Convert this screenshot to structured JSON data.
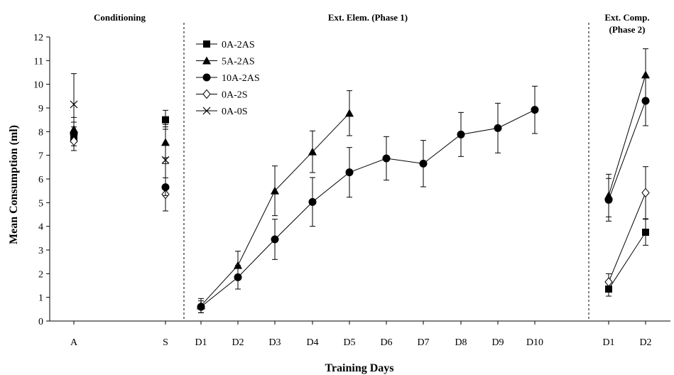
{
  "chart_data": {
    "type": "line",
    "xlabel": "Training Days",
    "ylabel": "Mean Consumption (ml)",
    "ylim": [
      0,
      12
    ],
    "yticks": [
      "0",
      "1",
      "2",
      "3",
      "4",
      "5",
      "6",
      "7",
      "8",
      "9",
      "10",
      "11",
      "12"
    ],
    "grid": false,
    "legend_position": "top-left",
    "sections": [
      {
        "title_lines": [
          "Conditioning"
        ],
        "categories": [
          "A",
          "S"
        ]
      },
      {
        "title_lines": [
          "Ext. Elem. (Phase 1)"
        ],
        "categories": [
          "D1",
          "D2",
          "D3",
          "D4",
          "D5",
          "D6",
          "D7",
          "D8",
          "D9",
          "D10"
        ]
      },
      {
        "title_lines": [
          "Ext. Comp.",
          "(Phase 2)"
        ],
        "categories": [
          "D1",
          "D2"
        ]
      }
    ],
    "series": [
      {
        "name": "0A-2AS",
        "marker": "filled-square",
        "segments": [
          {
            "section": 0,
            "connect": false,
            "points": [
              {
                "x": "A",
                "y": 7.7,
                "err": 0.5
              },
              {
                "x": "S",
                "y": 8.5,
                "err": 0.4
              }
            ]
          },
          {
            "section": 2,
            "connect": true,
            "points": [
              {
                "x": "D1",
                "y": 1.35,
                "err": 0.3
              },
              {
                "x": "D2",
                "y": 3.75,
                "err": 0.55
              }
            ]
          }
        ]
      },
      {
        "name": "5A-2AS",
        "marker": "filled-triangle",
        "segments": [
          {
            "section": 0,
            "connect": false,
            "points": [
              {
                "x": "A",
                "y": 8.1,
                "err": 0.5
              },
              {
                "x": "S",
                "y": 7.55,
                "err": 0.65
              }
            ]
          },
          {
            "section": 1,
            "connect": true,
            "points": [
              {
                "x": "D1",
                "y": 0.65,
                "err": 0.3
              },
              {
                "x": "D2",
                "y": 2.35,
                "err": 0.6
              },
              {
                "x": "D3",
                "y": 5.5,
                "err": 1.05
              },
              {
                "x": "D4",
                "y": 7.15,
                "err": 0.88
              },
              {
                "x": "D5",
                "y": 8.78,
                "err": 0.95
              }
            ]
          },
          {
            "section": 2,
            "connect": true,
            "points": [
              {
                "x": "D1",
                "y": 5.3,
                "err": 0.9
              },
              {
                "x": "D2",
                "y": 10.4,
                "err": 1.1
              }
            ]
          }
        ]
      },
      {
        "name": "10A-2AS",
        "marker": "filled-circle",
        "segments": [
          {
            "section": 0,
            "connect": false,
            "points": [
              {
                "x": "A",
                "y": 7.9,
                "err": 0.5
              },
              {
                "x": "S",
                "y": 5.65,
                "err": 1.0
              }
            ]
          },
          {
            "section": 1,
            "connect": true,
            "points": [
              {
                "x": "D1",
                "y": 0.6,
                "err": 0.25
              },
              {
                "x": "D2",
                "y": 1.85,
                "err": 0.5
              },
              {
                "x": "D3",
                "y": 3.45,
                "err": 0.85
              },
              {
                "x": "D4",
                "y": 5.03,
                "err": 1.03
              },
              {
                "x": "D5",
                "y": 6.28,
                "err": 1.05
              },
              {
                "x": "D6",
                "y": 6.87,
                "err": 0.92
              },
              {
                "x": "D7",
                "y": 6.65,
                "err": 0.98
              },
              {
                "x": "D8",
                "y": 7.88,
                "err": 0.93
              },
              {
                "x": "D9",
                "y": 8.15,
                "err": 1.05
              },
              {
                "x": "D10",
                "y": 8.92,
                "err": 1.0
              }
            ]
          },
          {
            "section": 2,
            "connect": true,
            "points": [
              {
                "x": "D1",
                "y": 5.12,
                "err": 0.9
              },
              {
                "x": "D2",
                "y": 9.3,
                "err": 1.05
              }
            ]
          }
        ]
      },
      {
        "name": "0A-2S",
        "marker": "open-diamond",
        "segments": [
          {
            "section": 0,
            "connect": false,
            "points": [
              {
                "x": "A",
                "y": 7.6,
                "err": 0.4
              },
              {
                "x": "S",
                "y": 5.35,
                "err": 0.7
              }
            ]
          },
          {
            "section": 2,
            "connect": true,
            "points": [
              {
                "x": "D1",
                "y": 1.65,
                "err": 0.35
              },
              {
                "x": "D2",
                "y": 5.42,
                "err": 1.1
              }
            ]
          }
        ]
      },
      {
        "name": "0A-0S",
        "marker": "cross",
        "segments": [
          {
            "section": 0,
            "connect": false,
            "points": [
              {
                "x": "A",
                "y": 9.15,
                "err": 1.3
              },
              {
                "x": "S",
                "y": 6.8,
                "err": 1.5
              }
            ]
          }
        ]
      }
    ]
  }
}
